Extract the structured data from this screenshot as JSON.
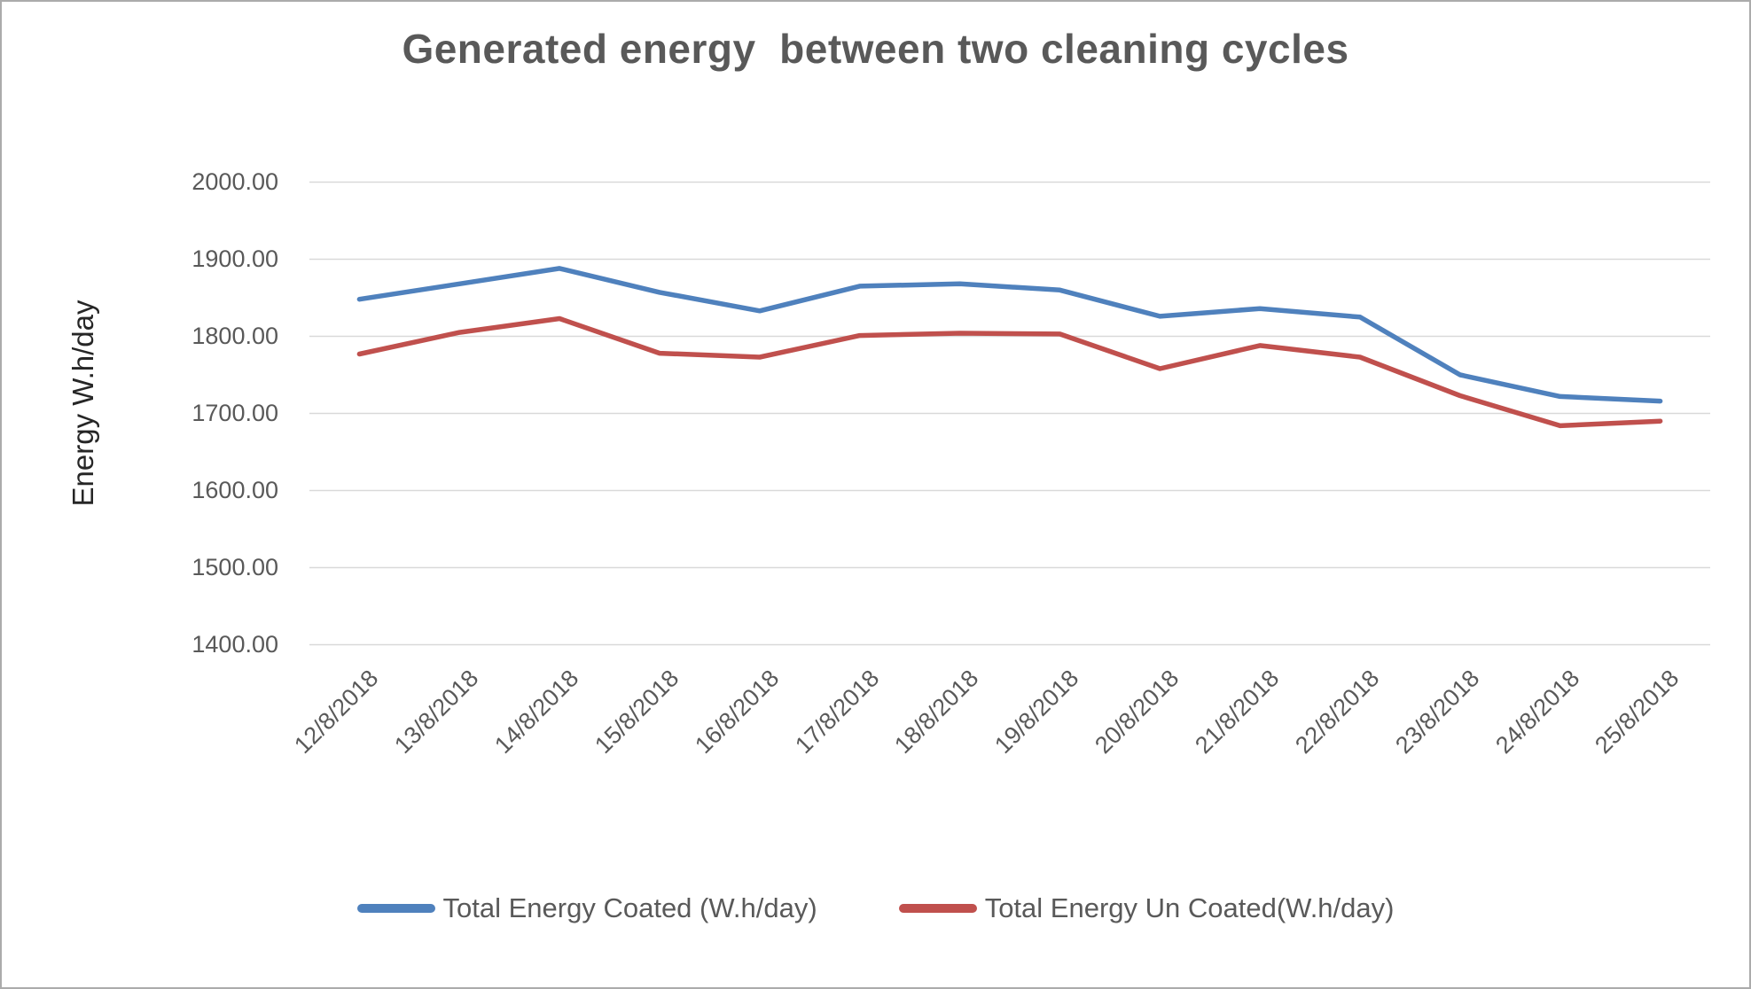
{
  "chart": {
    "title": "Generated energy  between two cleaning cycles",
    "ylabel": "Energy W.h/day"
  },
  "chart_data": {
    "type": "line",
    "title": "Generated energy  between two cleaning cycles",
    "xlabel": "",
    "ylabel": "Energy W.h/day",
    "ylim": [
      1400,
      2000
    ],
    "ytick_step": 100,
    "ytick_labels": [
      "2000.00",
      "1900.00",
      "1800.00",
      "1700.00",
      "1600.00",
      "1500.00",
      "1400.00"
    ],
    "grid": true,
    "legend_position": "bottom",
    "categories": [
      "12/8/2018",
      "13/8/2018",
      "14/8/2018",
      "15/8/2018",
      "16/8/2018",
      "17/8/2018",
      "18/8/2018",
      "19/8/2018",
      "20/8/2018",
      "21/8/2018",
      "22/8/2018",
      "23/8/2018",
      "24/8/2018",
      "25/8/2018"
    ],
    "series": [
      {
        "name": "Total Energy Coated (W.h/day)",
        "color": "#4F81BD",
        "values": [
          1848,
          1868,
          1888,
          1857,
          1833,
          1865,
          1868,
          1860,
          1826,
          1836,
          1825,
          1750,
          1722,
          1716
        ]
      },
      {
        "name": "Total Energy Un Coated(W.h/day)",
        "color": "#C0504D",
        "values": [
          1777,
          1805,
          1823,
          1778,
          1773,
          1801,
          1804,
          1803,
          1758,
          1788,
          1773,
          1723,
          1684,
          1690
        ]
      }
    ],
    "gridline_color": "#d9d9d9",
    "text_color": "#595959"
  }
}
